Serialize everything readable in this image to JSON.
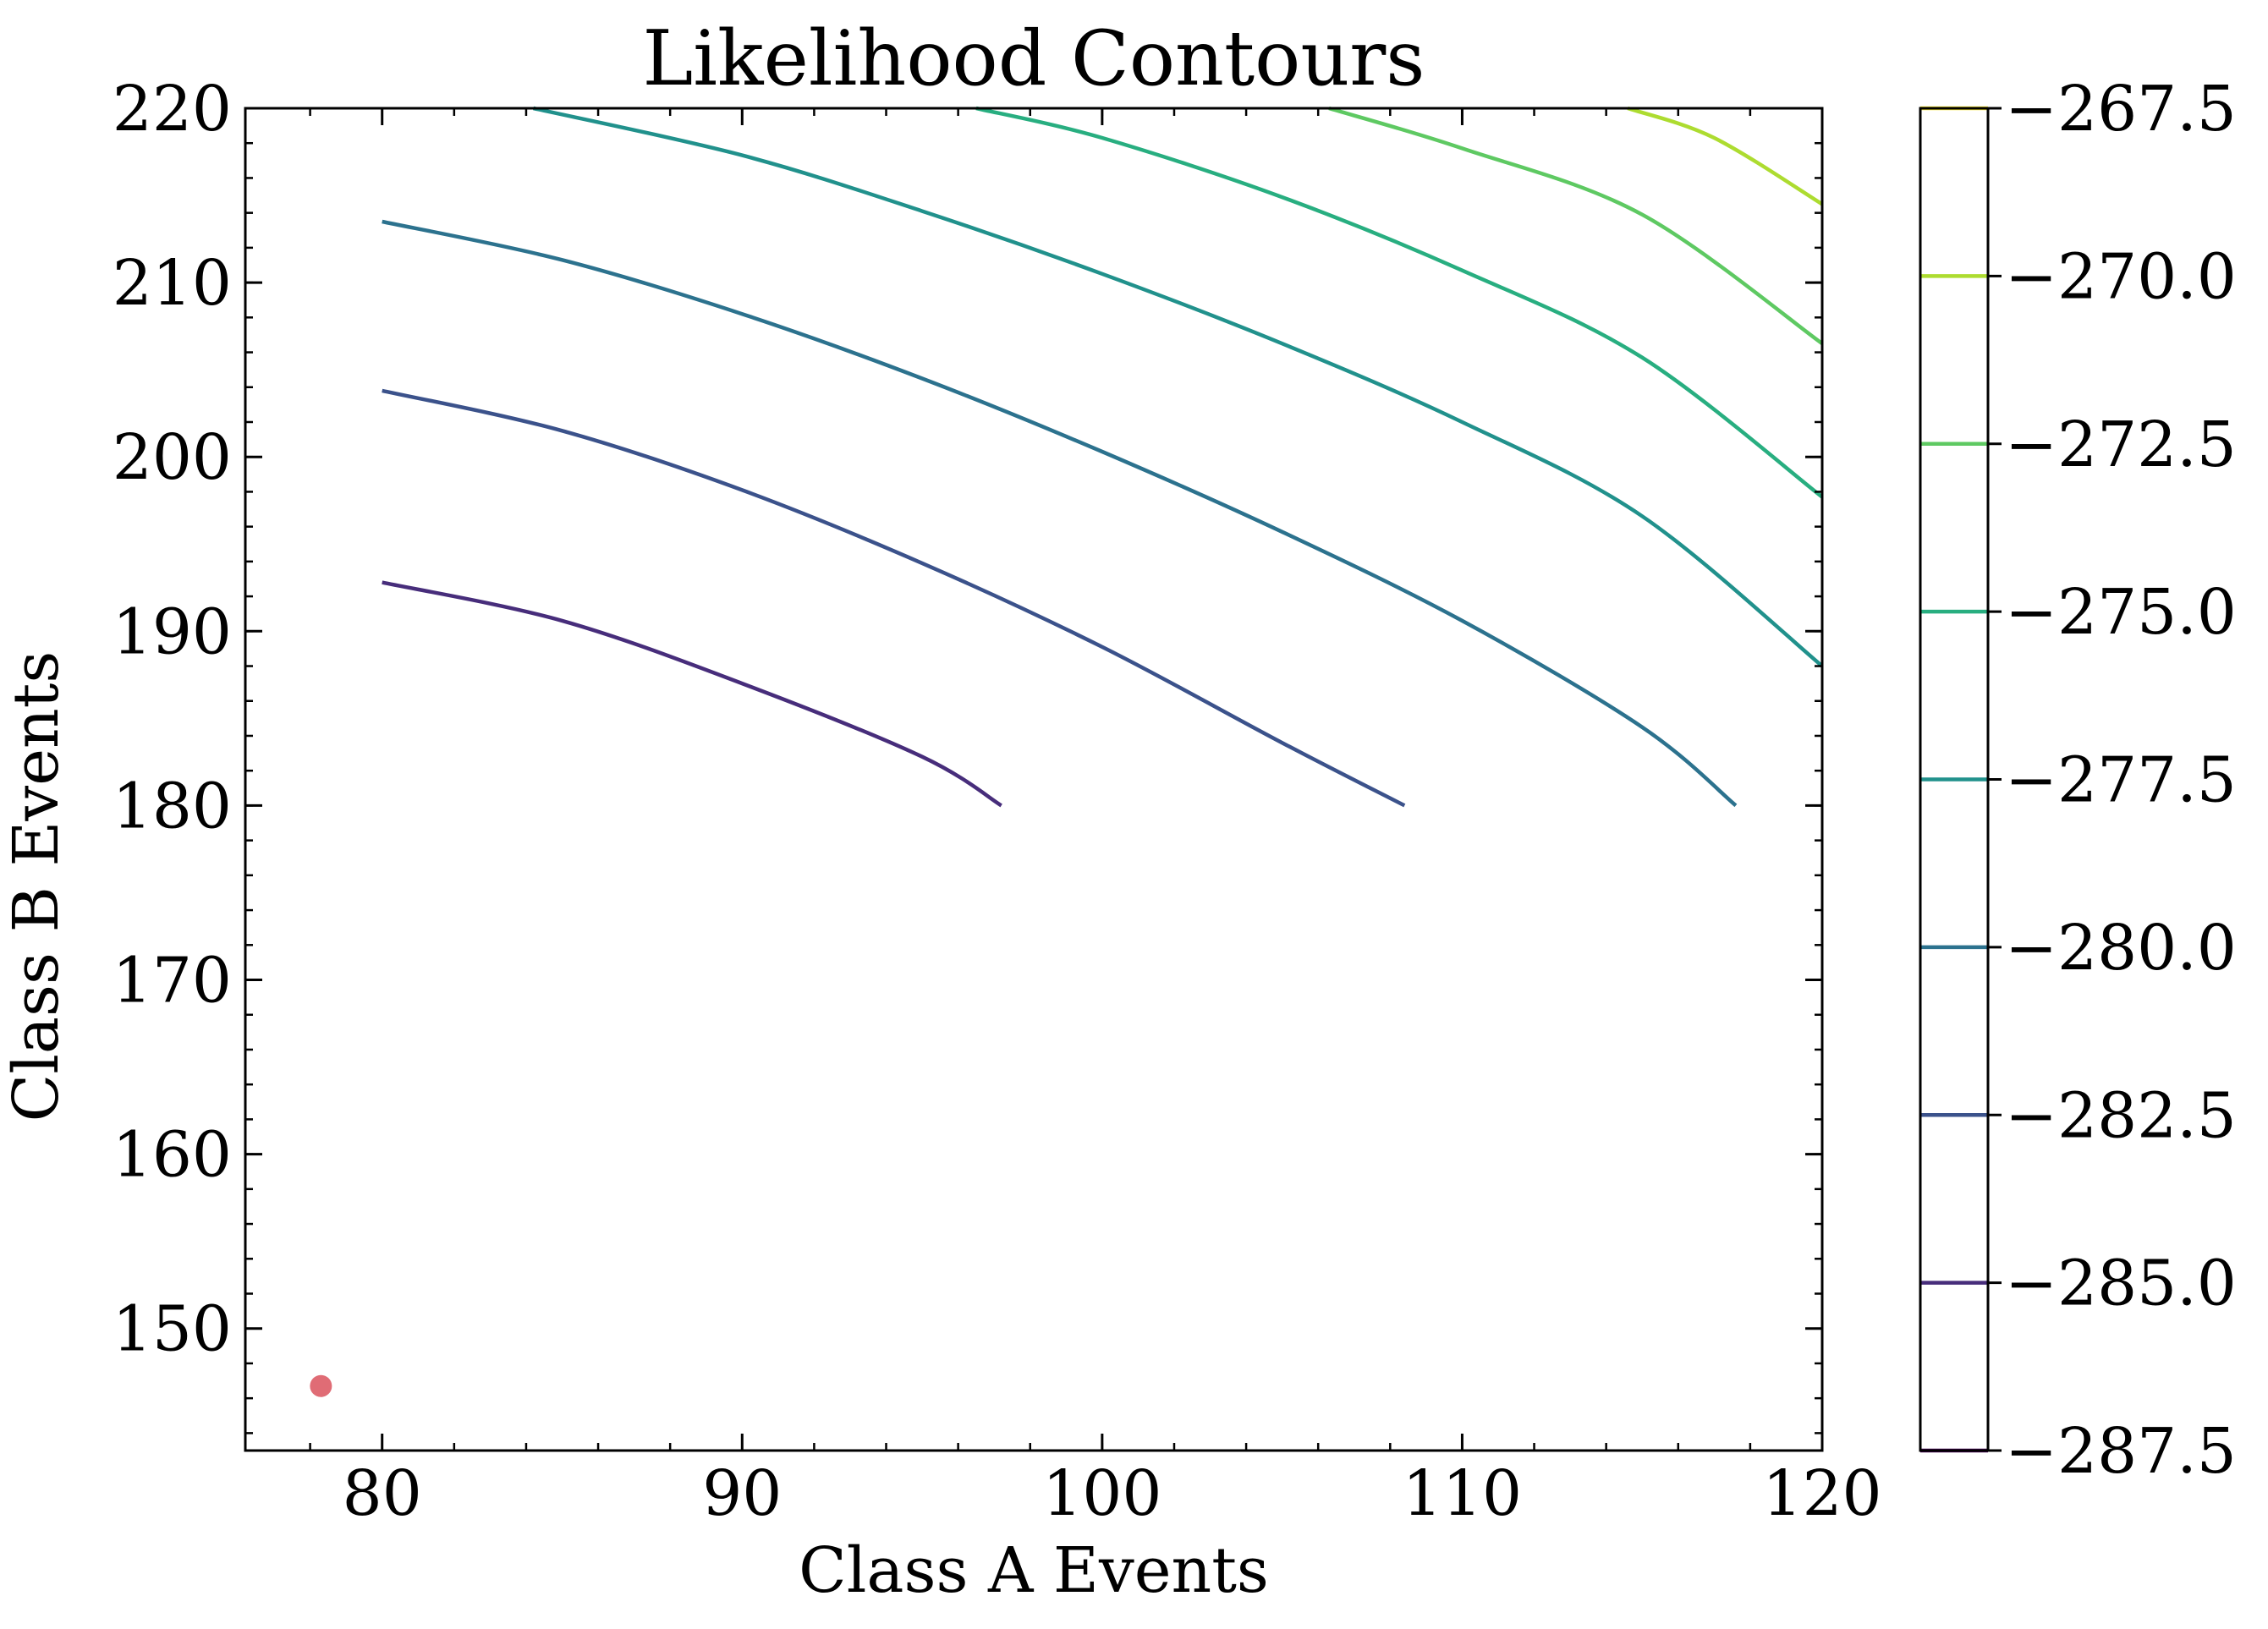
{
  "chart_data": {
    "type": "contour",
    "title": "Likelihood Contours",
    "xlabel": "Class A Events",
    "ylabel": "Class B Events",
    "xlim": [
      76.2,
      120
    ],
    "ylim": [
      143,
      220
    ],
    "xticks": [
      80,
      90,
      100,
      110,
      120
    ],
    "xtick_labels": [
      "80",
      "90",
      "100",
      "110",
      "120"
    ],
    "yticks": [
      150,
      160,
      170,
      180,
      190,
      200,
      210,
      220
    ],
    "ytick_labels": [
      "150",
      "160",
      "170",
      "180",
      "190",
      "200",
      "210",
      "220"
    ],
    "grid": false,
    "colorbar": {
      "range": [
        -287.5,
        -267.5
      ],
      "ticks": [
        -287.5,
        -285.0,
        -282.5,
        -280.0,
        -277.5,
        -275.0,
        -272.5,
        -270.0,
        -267.5
      ],
      "tick_labels": [
        "−287.5",
        "−285.0",
        "−282.5",
        "−280.0",
        "−277.5",
        "−275.0",
        "−272.5",
        "−270.0",
        "−267.5"
      ],
      "level_colors": [
        "#440154",
        "#472d7b",
        "#3b528b",
        "#2c728e",
        "#21918c",
        "#28ae80",
        "#5ec962",
        "#addc30",
        "#fde725"
      ]
    },
    "contours": [
      {
        "level": -285.0,
        "color": "#472d7b",
        "points": [
          [
            80,
            192.8
          ],
          [
            85,
            190.6
          ],
          [
            90,
            187.0
          ],
          [
            95,
            182.8
          ],
          [
            97.2,
            180.0
          ]
        ]
      },
      {
        "level": -282.5,
        "color": "#3b528b",
        "points": [
          [
            80,
            203.8
          ],
          [
            85,
            201.5
          ],
          [
            90,
            198.1
          ],
          [
            95,
            193.9
          ],
          [
            100,
            189.1
          ],
          [
            105,
            183.6
          ],
          [
            108.4,
            180.0
          ]
        ]
      },
      {
        "level": -280.0,
        "color": "#2c728e",
        "points": [
          [
            80,
            213.5
          ],
          [
            85,
            211.3
          ],
          [
            90,
            208.2
          ],
          [
            95,
            204.5
          ],
          [
            100,
            200.3
          ],
          [
            105,
            195.7
          ],
          [
            110,
            190.6
          ],
          [
            115,
            184.5
          ],
          [
            117.6,
            180.0
          ]
        ]
      },
      {
        "level": -277.5,
        "color": "#21918c",
        "points": [
          [
            84.2,
            220.0
          ],
          [
            90,
            217.3
          ],
          [
            95,
            214.1
          ],
          [
            100,
            210.5
          ],
          [
            105,
            206.5
          ],
          [
            110,
            202.0
          ],
          [
            115,
            196.6
          ],
          [
            120,
            188.0
          ]
        ]
      },
      {
        "level": -275.0,
        "color": "#28ae80",
        "points": [
          [
            96.5,
            220.0
          ],
          [
            100,
            218.3
          ],
          [
            105,
            214.9
          ],
          [
            110,
            210.7
          ],
          [
            115,
            205.7
          ],
          [
            120,
            197.7
          ]
        ]
      },
      {
        "level": -272.5,
        "color": "#5ec962",
        "points": [
          [
            106.3,
            220.0
          ],
          [
            110,
            217.7
          ],
          [
            115,
            213.9
          ],
          [
            120,
            206.5
          ]
        ]
      },
      {
        "level": -270.0,
        "color": "#addc30",
        "points": [
          [
            114.6,
            220.0
          ],
          [
            117,
            218.3
          ],
          [
            120,
            214.5
          ]
        ]
      }
    ],
    "marker": {
      "x": 78.3,
      "y": 146.7,
      "color": "#e06c75"
    }
  }
}
